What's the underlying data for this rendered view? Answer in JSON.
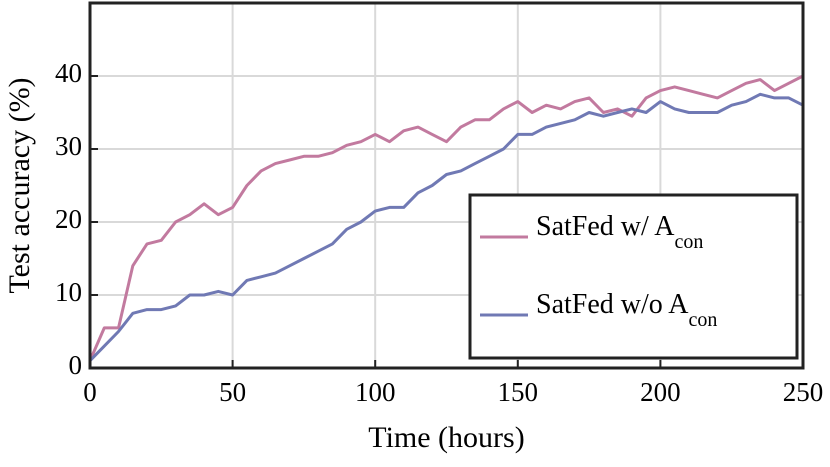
{
  "chart_data": {
    "type": "line",
    "xlabel": "Time (hours)",
    "ylabel": "Test accuracy (%)",
    "x": [
      0,
      5,
      10,
      15,
      20,
      25,
      30,
      35,
      40,
      45,
      50,
      55,
      60,
      65,
      70,
      75,
      80,
      85,
      90,
      95,
      100,
      105,
      110,
      115,
      120,
      125,
      130,
      135,
      140,
      145,
      150,
      155,
      160,
      165,
      170,
      175,
      180,
      185,
      190,
      195,
      200,
      205,
      210,
      215,
      220,
      225,
      230,
      235,
      240,
      245,
      250
    ],
    "series": [
      {
        "name": "SatFed w/ A",
        "subscript": "con",
        "color": "#c27a9f",
        "values": [
          1,
          5.5,
          5.5,
          14,
          17,
          17.5,
          20,
          21,
          22.5,
          21,
          22,
          25,
          27,
          28,
          28.5,
          29,
          29,
          29.5,
          30.5,
          31,
          32,
          31,
          32.5,
          33,
          32,
          31,
          33,
          34,
          34,
          35.5,
          36.5,
          35,
          36,
          35.5,
          36.5,
          37,
          35,
          35.5,
          34.5,
          37,
          38,
          38.5,
          38,
          37.5,
          37,
          38,
          39,
          39.5,
          38,
          39,
          40
        ]
      },
      {
        "name": "SatFed w/o A",
        "subscript": "con",
        "color": "#7079b4",
        "values": [
          1,
          3,
          5,
          7.5,
          8,
          8,
          8.5,
          10,
          10,
          10.5,
          10,
          12,
          12.5,
          13,
          14,
          15,
          16,
          17,
          19,
          20,
          21.5,
          22,
          22,
          24,
          25,
          26.5,
          27,
          28,
          29,
          30,
          32,
          32,
          33,
          33.5,
          34,
          35,
          34.5,
          35,
          35.5,
          35,
          36.5,
          35.5,
          35,
          35,
          35,
          36,
          36.5,
          37.5,
          37,
          37,
          36
        ]
      }
    ],
    "xlim": [
      0,
      250
    ],
    "xticks": [
      0,
      50,
      100,
      150,
      200,
      250
    ],
    "ylim": [
      0,
      50
    ],
    "yticks": [
      0,
      10,
      20,
      30,
      40
    ],
    "grid": true,
    "legend": "lower right"
  }
}
